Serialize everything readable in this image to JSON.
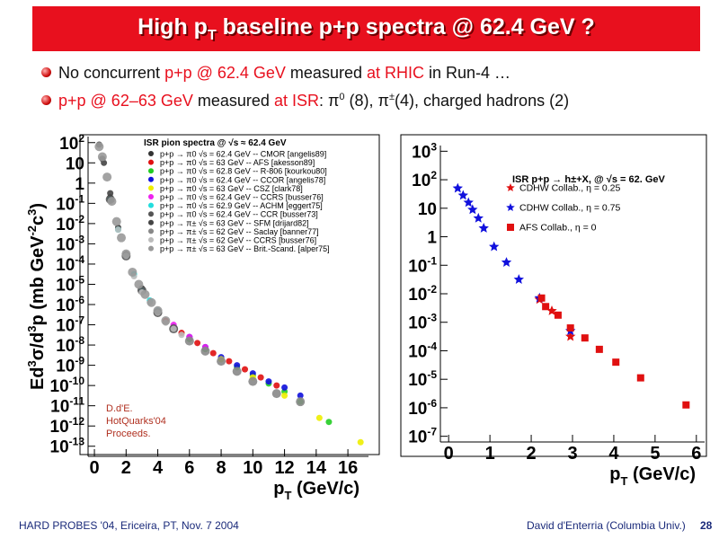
{
  "slide": {
    "title": "High p",
    "title_sub": "T",
    "title_rest": " baseline p+p spectra @ 62.4 GeV ?",
    "bullet1": {
      "t1": "No concurrent ",
      "t2": "p+p @ 62.4 GeV",
      "t3": " measured ",
      "t4": "at RHIC",
      "t5": " in Run-4 …"
    },
    "bullet2": {
      "t1": "p+p @ 62–63 GeV",
      "t2": " measured ",
      "t3": "at ISR",
      "t4": ":   π",
      "t5": "0",
      "t6": " (8), π",
      "t7": "±",
      "t8": "(4), charged hadrons (2)"
    },
    "footer_left": "HARD PROBES '04, Ericeira, PT, Nov. 7 2004",
    "footer_right": "David d'Enterria (Columbia Univ.)",
    "page_number": "28"
  },
  "chart_data": [
    {
      "type": "scatter",
      "title": "ISR pion spectra @ √s ≈ 62.4 GeV",
      "xlabel": "pT (GeV/c)",
      "ylabel": "Ed3σ/d3p (mb GeV-2c3)",
      "log_y": true,
      "xlim": [
        -0.4,
        17.3
      ],
      "ylim_log10": [
        -13.5,
        2.3
      ],
      "x_ticks": [
        0,
        2,
        4,
        6,
        8,
        10,
        12,
        14,
        16
      ],
      "legend_position": "top-right",
      "annotation": [
        "D.d'E.",
        "HotQuarks'04",
        "Proceeds."
      ],
      "series": [
        {
          "name": "p+p → π0 √s = 62.4 GeV -- CMOR [angelis89]",
          "color": "#333333",
          "marker": "circle",
          "points": [
            [
              0.5,
              1.2
            ],
            [
              1,
              -0.7
            ],
            [
              1.5,
              -2.2
            ],
            [
              2,
              -3.5
            ],
            [
              3,
              -5.2
            ],
            [
              4,
              -6.3
            ],
            [
              5,
              -7.1
            ],
            [
              6,
              -7.7
            ],
            [
              7,
              -8.2
            ]
          ]
        },
        {
          "name": "p+p → π0 √s = 63 GeV -- AFS [akesson89]",
          "color": "#e01010",
          "marker": "circle",
          "points": [
            [
              4.5,
              -6.8
            ],
            [
              5.5,
              -7.4
            ],
            [
              6.5,
              -7.9
            ],
            [
              7.5,
              -8.4
            ],
            [
              8.5,
              -8.8
            ],
            [
              9.5,
              -9.2
            ],
            [
              10.5,
              -9.6
            ],
            [
              11.5,
              -10.0
            ]
          ]
        },
        {
          "name": "p+p → π0 √s = 62.8 GeV -- R-806 [kourkou80]",
          "color": "#22cc22",
          "marker": "circle",
          "points": [
            [
              3,
              -5.3
            ],
            [
              4,
              -6.3
            ],
            [
              5,
              -7.1
            ],
            [
              6,
              -7.7
            ],
            [
              7,
              -8.2
            ],
            [
              8,
              -8.7
            ],
            [
              9,
              -9.1
            ],
            [
              10,
              -9.5
            ],
            [
              11,
              -9.9
            ],
            [
              12,
              -10.3
            ],
            [
              13,
              -10.8
            ],
            [
              14.8,
              -11.8
            ]
          ]
        },
        {
          "name": "p+p → π0 √s = 62.4 GeV -- CCOR [angelis78]",
          "color": "#1010dd",
          "marker": "circle",
          "points": [
            [
              3,
              -5.3
            ],
            [
              4,
              -6.3
            ],
            [
              5,
              -7.1
            ],
            [
              6,
              -7.6
            ],
            [
              7,
              -8.1
            ],
            [
              8,
              -8.6
            ],
            [
              9,
              -9.0
            ],
            [
              10,
              -9.4
            ],
            [
              11,
              -9.8
            ],
            [
              12,
              -10.1
            ],
            [
              13,
              -10.5
            ]
          ]
        },
        {
          "name": "p+p → π0 √s = 63 GeV -- CSZ [clark78]",
          "color": "#eeee00",
          "marker": "circle",
          "points": [
            [
              8,
              -8.7
            ],
            [
              10,
              -9.6
            ],
            [
              12,
              -10.5
            ],
            [
              14.2,
              -11.6
            ],
            [
              16.8,
              -12.8
            ]
          ]
        },
        {
          "name": "p+p → π0 √s = 62.4 GeV -- CCRS [busser76]",
          "color": "#ee22ee",
          "marker": "circle",
          "points": [
            [
              2,
              -3.6
            ],
            [
              3,
              -5.3
            ],
            [
              4,
              -6.3
            ],
            [
              5,
              -7.0
            ],
            [
              6,
              -7.6
            ],
            [
              7,
              -8.1
            ]
          ]
        },
        {
          "name": "p+p → π0 √s = 62.9 GeV -- ACHM [eggert75]",
          "color": "#22dddd",
          "marker": "circle",
          "points": [
            [
              1,
              -0.8
            ],
            [
              1.5,
              -2.3
            ],
            [
              2,
              -3.6
            ],
            [
              2.5,
              -4.5
            ],
            [
              3,
              -5.3
            ],
            [
              3.5,
              -5.8
            ],
            [
              4,
              -6.3
            ]
          ]
        },
        {
          "name": "p+p → π0 √s = 62.4 GeV -- CCR [busser73]",
          "color": "#555555",
          "marker": "circle",
          "points": [
            [
              1,
              -0.8
            ],
            [
              2,
              -3.6
            ],
            [
              3,
              -5.3
            ],
            [
              4,
              -6.4
            ],
            [
              5,
              -7.2
            ]
          ]
        },
        {
          "name": "p+p → π± √s = 63 GeV -- SFM [drijard82]",
          "color": "#444444",
          "marker": "circle",
          "points": [
            [
              0.3,
              1.9
            ],
            [
              0.6,
              1.0
            ],
            [
              1,
              -0.5
            ]
          ]
        },
        {
          "name": "p+p → π± √s = 62 GeV -- Saclay [banner77]",
          "color": "#888888",
          "marker": "circle",
          "points": [
            [
              6,
              -7.8
            ],
            [
              7,
              -8.3
            ],
            [
              8,
              -8.8
            ],
            [
              9,
              -9.3
            ],
            [
              10,
              -9.8
            ],
            [
              11.5,
              -10.4
            ],
            [
              13,
              -10.8
            ]
          ]
        },
        {
          "name": "p+p → π± √s = 62 GeV -- CCRS [busser76]",
          "color": "#bbbbbb",
          "marker": "circle",
          "points": [
            [
              1.5,
              -2.3
            ],
            [
              2,
              -3.6
            ],
            [
              2.5,
              -4.6
            ],
            [
              3,
              -5.4
            ],
            [
              3.5,
              -5.9
            ],
            [
              4,
              -6.4
            ],
            [
              4.5,
              -6.9
            ],
            [
              5,
              -7.2
            ],
            [
              5.5,
              -7.5
            ]
          ]
        },
        {
          "name": "p+p → π± √s = 63 GeV -- Brit.-Scand. [alper75]",
          "color": "#999999",
          "marker": "circle",
          "points": [
            [
              0.3,
              1.8
            ],
            [
              0.5,
              1.3
            ],
            [
              0.8,
              0.3
            ],
            [
              1.1,
              -0.9
            ],
            [
              1.4,
              -1.9
            ],
            [
              1.7,
              -2.7
            ],
            [
              2,
              -3.5
            ],
            [
              2.4,
              -4.4
            ],
            [
              2.8,
              -5.0
            ],
            [
              3.2,
              -5.5
            ],
            [
              3.6,
              -5.9
            ],
            [
              4,
              -6.3
            ],
            [
              4.5,
              -6.8
            ]
          ]
        }
      ]
    },
    {
      "type": "scatter",
      "title": "ISR p+p → h±+X, @ √s = 62. GeV",
      "xlabel": "pT (GeV/c)",
      "ylabel": "",
      "log_y": true,
      "xlim": [
        -0.2,
        6.2
      ],
      "ylim_log10": [
        -7.2,
        3.2
      ],
      "x_ticks": [
        0,
        1,
        2,
        3,
        4,
        5,
        6
      ],
      "legend_position": "top-right",
      "series": [
        {
          "name": "CDHW Collab., η = 0.25",
          "color": "#e01010",
          "marker": "star",
          "points": [
            [
              2.2,
              -2.2
            ],
            [
              2.5,
              -2.6
            ],
            [
              2.95,
              -3.5
            ]
          ]
        },
        {
          "name": "CDHW Collab., η = 0.75",
          "color": "#1010dd",
          "marker": "star",
          "points": [
            [
              0.22,
              1.7
            ],
            [
              0.35,
              1.45
            ],
            [
              0.48,
              1.2
            ],
            [
              0.58,
              0.95
            ],
            [
              0.72,
              0.65
            ],
            [
              0.85,
              0.3
            ],
            [
              1.1,
              -0.35
            ],
            [
              1.4,
              -0.9
            ],
            [
              1.7,
              -1.5
            ],
            [
              2.2,
              -2.15
            ],
            [
              2.95,
              -3.3
            ]
          ]
        },
        {
          "name": "AFS Collab., η = 0",
          "color": "#e01010",
          "marker": "square",
          "points": [
            [
              2.25,
              -2.15
            ],
            [
              2.35,
              -2.45
            ],
            [
              2.65,
              -2.75
            ],
            [
              2.95,
              -3.2
            ],
            [
              3.3,
              -3.55
            ],
            [
              3.65,
              -3.95
            ],
            [
              4.05,
              -4.4
            ],
            [
              4.65,
              -4.95
            ],
            [
              5.75,
              -5.9
            ]
          ]
        }
      ]
    }
  ]
}
